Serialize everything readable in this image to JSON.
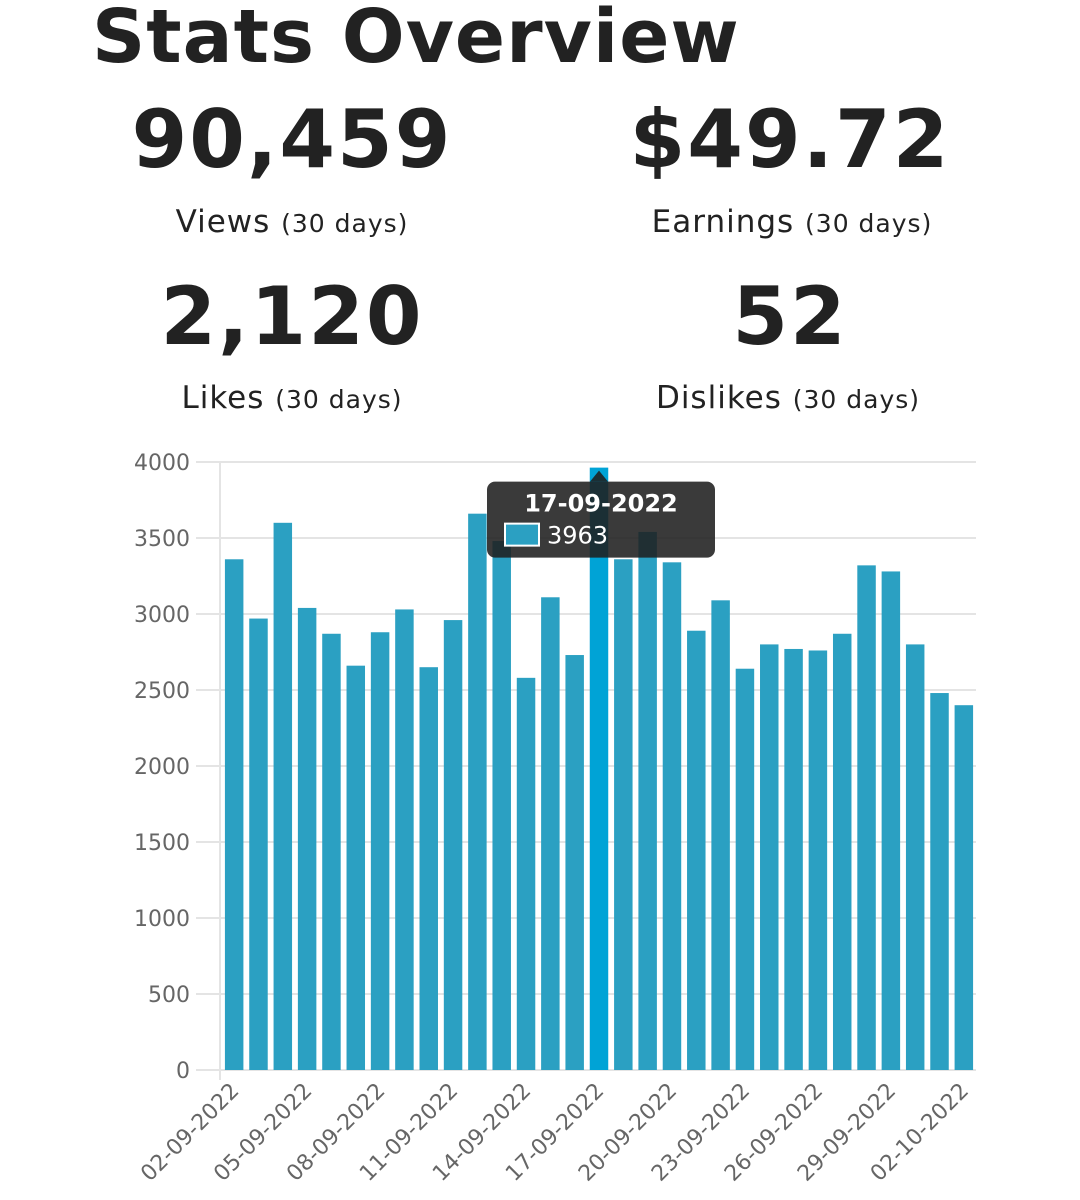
{
  "page": {
    "title": "Stats Overview"
  },
  "stats": [
    {
      "value": "90,459",
      "label": "Views",
      "period": "(30 days)"
    },
    {
      "value": "$49.72",
      "label": "Earnings",
      "period": "(30 days)"
    },
    {
      "value": "2,120",
      "label": "Likes",
      "period": "(30 days)"
    },
    {
      "value": "52",
      "label": "Dislikes",
      "period": "(30 days)"
    }
  ],
  "colors": {
    "bar": "#2ba0c2",
    "bar_highlight": "#00a3d6",
    "grid": "#e4e4e4",
    "tooltip_bg": "#1f1f1f"
  },
  "chart_data": {
    "type": "bar",
    "ylim": [
      0,
      4000
    ],
    "yticks": [
      0,
      500,
      1000,
      1500,
      2000,
      2500,
      3000,
      3500,
      4000
    ],
    "grid": true,
    "categories": [
      "02-09-2022",
      "03-09-2022",
      "04-09-2022",
      "05-09-2022",
      "06-09-2022",
      "07-09-2022",
      "08-09-2022",
      "09-09-2022",
      "10-09-2022",
      "11-09-2022",
      "12-09-2022",
      "13-09-2022",
      "14-09-2022",
      "15-09-2022",
      "16-09-2022",
      "17-09-2022",
      "18-09-2022",
      "19-09-2022",
      "20-09-2022",
      "21-09-2022",
      "22-09-2022",
      "23-09-2022",
      "24-09-2022",
      "25-09-2022",
      "26-09-2022",
      "27-09-2022",
      "28-09-2022",
      "29-09-2022",
      "30-09-2022",
      "01-10-2022",
      "02-10-2022"
    ],
    "xtick_labels": [
      "02-09-2022",
      "05-09-2022",
      "08-09-2022",
      "11-09-2022",
      "14-09-2022",
      "17-09-2022",
      "20-09-2022",
      "23-09-2022",
      "26-09-2022",
      "29-09-2022",
      "02-10-2022"
    ],
    "values": [
      3360,
      2970,
      3600,
      3040,
      2870,
      2660,
      2880,
      3030,
      2650,
      2960,
      3660,
      3480,
      2580,
      3110,
      2730,
      3963,
      3360,
      3540,
      3340,
      2890,
      3090,
      2640,
      2800,
      2770,
      2760,
      2870,
      3320,
      3280,
      2800,
      2480,
      2400
    ],
    "highlight_index": 15,
    "tooltip": {
      "title": "17-09-2022",
      "value": "3963"
    }
  }
}
